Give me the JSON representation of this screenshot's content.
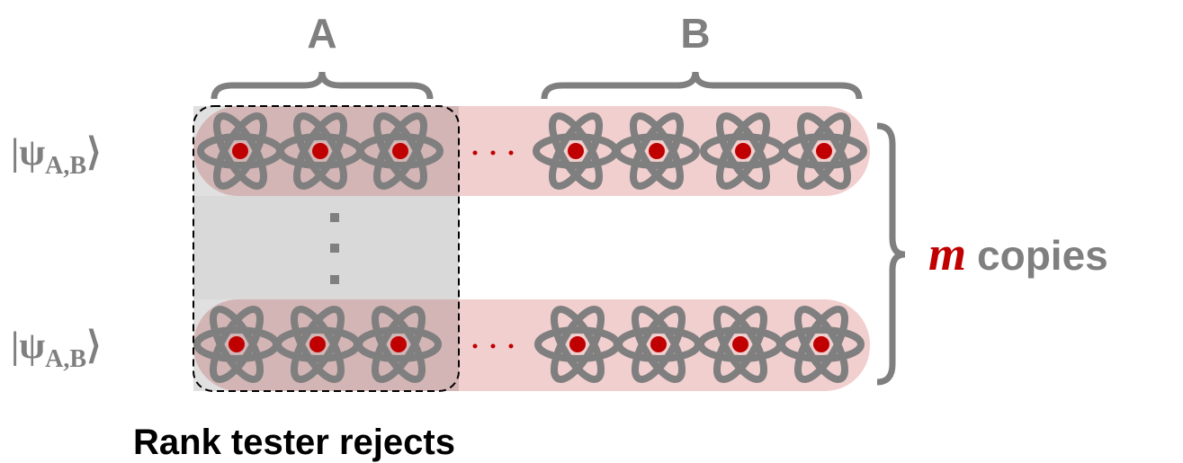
{
  "labels": {
    "a": "A",
    "b": "B"
  },
  "rows": [
    {
      "ket_open": "|ψ",
      "sub": "A,B",
      "ket_close": "⟩"
    },
    {
      "ket_open": "|ψ",
      "sub": "A,B",
      "ket_close": "⟩"
    }
  ],
  "copies": {
    "symbol": "m",
    "text": "copies"
  },
  "caption": "Rank tester rejects"
}
